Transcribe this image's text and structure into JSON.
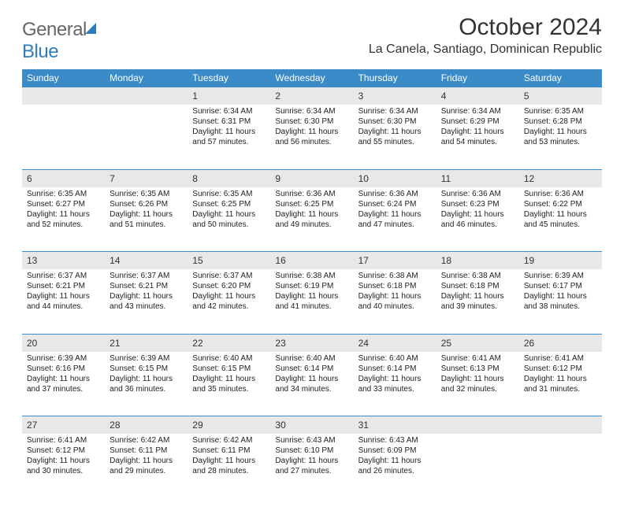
{
  "logo": {
    "word1": "General",
    "word2": "Blue"
  },
  "title": "October 2024",
  "location": "La Canela, Santiago, Dominican Republic",
  "colors": {
    "header_bg": "#3b8bc9",
    "header_text": "#ffffff",
    "daynum_bg": "#e8e8e8",
    "row_border": "#3b8bc9",
    "page_bg": "#ffffff",
    "text": "#222222"
  },
  "day_headers": [
    "Sunday",
    "Monday",
    "Tuesday",
    "Wednesday",
    "Thursday",
    "Friday",
    "Saturday"
  ],
  "weeks": [
    [
      null,
      null,
      {
        "n": "1",
        "sr": "Sunrise: 6:34 AM",
        "ss": "Sunset: 6:31 PM",
        "dl1": "Daylight: 11 hours",
        "dl2": "and 57 minutes."
      },
      {
        "n": "2",
        "sr": "Sunrise: 6:34 AM",
        "ss": "Sunset: 6:30 PM",
        "dl1": "Daylight: 11 hours",
        "dl2": "and 56 minutes."
      },
      {
        "n": "3",
        "sr": "Sunrise: 6:34 AM",
        "ss": "Sunset: 6:30 PM",
        "dl1": "Daylight: 11 hours",
        "dl2": "and 55 minutes."
      },
      {
        "n": "4",
        "sr": "Sunrise: 6:34 AM",
        "ss": "Sunset: 6:29 PM",
        "dl1": "Daylight: 11 hours",
        "dl2": "and 54 minutes."
      },
      {
        "n": "5",
        "sr": "Sunrise: 6:35 AM",
        "ss": "Sunset: 6:28 PM",
        "dl1": "Daylight: 11 hours",
        "dl2": "and 53 minutes."
      }
    ],
    [
      {
        "n": "6",
        "sr": "Sunrise: 6:35 AM",
        "ss": "Sunset: 6:27 PM",
        "dl1": "Daylight: 11 hours",
        "dl2": "and 52 minutes."
      },
      {
        "n": "7",
        "sr": "Sunrise: 6:35 AM",
        "ss": "Sunset: 6:26 PM",
        "dl1": "Daylight: 11 hours",
        "dl2": "and 51 minutes."
      },
      {
        "n": "8",
        "sr": "Sunrise: 6:35 AM",
        "ss": "Sunset: 6:25 PM",
        "dl1": "Daylight: 11 hours",
        "dl2": "and 50 minutes."
      },
      {
        "n": "9",
        "sr": "Sunrise: 6:36 AM",
        "ss": "Sunset: 6:25 PM",
        "dl1": "Daylight: 11 hours",
        "dl2": "and 49 minutes."
      },
      {
        "n": "10",
        "sr": "Sunrise: 6:36 AM",
        "ss": "Sunset: 6:24 PM",
        "dl1": "Daylight: 11 hours",
        "dl2": "and 47 minutes."
      },
      {
        "n": "11",
        "sr": "Sunrise: 6:36 AM",
        "ss": "Sunset: 6:23 PM",
        "dl1": "Daylight: 11 hours",
        "dl2": "and 46 minutes."
      },
      {
        "n": "12",
        "sr": "Sunrise: 6:36 AM",
        "ss": "Sunset: 6:22 PM",
        "dl1": "Daylight: 11 hours",
        "dl2": "and 45 minutes."
      }
    ],
    [
      {
        "n": "13",
        "sr": "Sunrise: 6:37 AM",
        "ss": "Sunset: 6:21 PM",
        "dl1": "Daylight: 11 hours",
        "dl2": "and 44 minutes."
      },
      {
        "n": "14",
        "sr": "Sunrise: 6:37 AM",
        "ss": "Sunset: 6:21 PM",
        "dl1": "Daylight: 11 hours",
        "dl2": "and 43 minutes."
      },
      {
        "n": "15",
        "sr": "Sunrise: 6:37 AM",
        "ss": "Sunset: 6:20 PM",
        "dl1": "Daylight: 11 hours",
        "dl2": "and 42 minutes."
      },
      {
        "n": "16",
        "sr": "Sunrise: 6:38 AM",
        "ss": "Sunset: 6:19 PM",
        "dl1": "Daylight: 11 hours",
        "dl2": "and 41 minutes."
      },
      {
        "n": "17",
        "sr": "Sunrise: 6:38 AM",
        "ss": "Sunset: 6:18 PM",
        "dl1": "Daylight: 11 hours",
        "dl2": "and 40 minutes."
      },
      {
        "n": "18",
        "sr": "Sunrise: 6:38 AM",
        "ss": "Sunset: 6:18 PM",
        "dl1": "Daylight: 11 hours",
        "dl2": "and 39 minutes."
      },
      {
        "n": "19",
        "sr": "Sunrise: 6:39 AM",
        "ss": "Sunset: 6:17 PM",
        "dl1": "Daylight: 11 hours",
        "dl2": "and 38 minutes."
      }
    ],
    [
      {
        "n": "20",
        "sr": "Sunrise: 6:39 AM",
        "ss": "Sunset: 6:16 PM",
        "dl1": "Daylight: 11 hours",
        "dl2": "and 37 minutes."
      },
      {
        "n": "21",
        "sr": "Sunrise: 6:39 AM",
        "ss": "Sunset: 6:15 PM",
        "dl1": "Daylight: 11 hours",
        "dl2": "and 36 minutes."
      },
      {
        "n": "22",
        "sr": "Sunrise: 6:40 AM",
        "ss": "Sunset: 6:15 PM",
        "dl1": "Daylight: 11 hours",
        "dl2": "and 35 minutes."
      },
      {
        "n": "23",
        "sr": "Sunrise: 6:40 AM",
        "ss": "Sunset: 6:14 PM",
        "dl1": "Daylight: 11 hours",
        "dl2": "and 34 minutes."
      },
      {
        "n": "24",
        "sr": "Sunrise: 6:40 AM",
        "ss": "Sunset: 6:14 PM",
        "dl1": "Daylight: 11 hours",
        "dl2": "and 33 minutes."
      },
      {
        "n": "25",
        "sr": "Sunrise: 6:41 AM",
        "ss": "Sunset: 6:13 PM",
        "dl1": "Daylight: 11 hours",
        "dl2": "and 32 minutes."
      },
      {
        "n": "26",
        "sr": "Sunrise: 6:41 AM",
        "ss": "Sunset: 6:12 PM",
        "dl1": "Daylight: 11 hours",
        "dl2": "and 31 minutes."
      }
    ],
    [
      {
        "n": "27",
        "sr": "Sunrise: 6:41 AM",
        "ss": "Sunset: 6:12 PM",
        "dl1": "Daylight: 11 hours",
        "dl2": "and 30 minutes."
      },
      {
        "n": "28",
        "sr": "Sunrise: 6:42 AM",
        "ss": "Sunset: 6:11 PM",
        "dl1": "Daylight: 11 hours",
        "dl2": "and 29 minutes."
      },
      {
        "n": "29",
        "sr": "Sunrise: 6:42 AM",
        "ss": "Sunset: 6:11 PM",
        "dl1": "Daylight: 11 hours",
        "dl2": "and 28 minutes."
      },
      {
        "n": "30",
        "sr": "Sunrise: 6:43 AM",
        "ss": "Sunset: 6:10 PM",
        "dl1": "Daylight: 11 hours",
        "dl2": "and 27 minutes."
      },
      {
        "n": "31",
        "sr": "Sunrise: 6:43 AM",
        "ss": "Sunset: 6:09 PM",
        "dl1": "Daylight: 11 hours",
        "dl2": "and 26 minutes."
      },
      null,
      null
    ]
  ]
}
